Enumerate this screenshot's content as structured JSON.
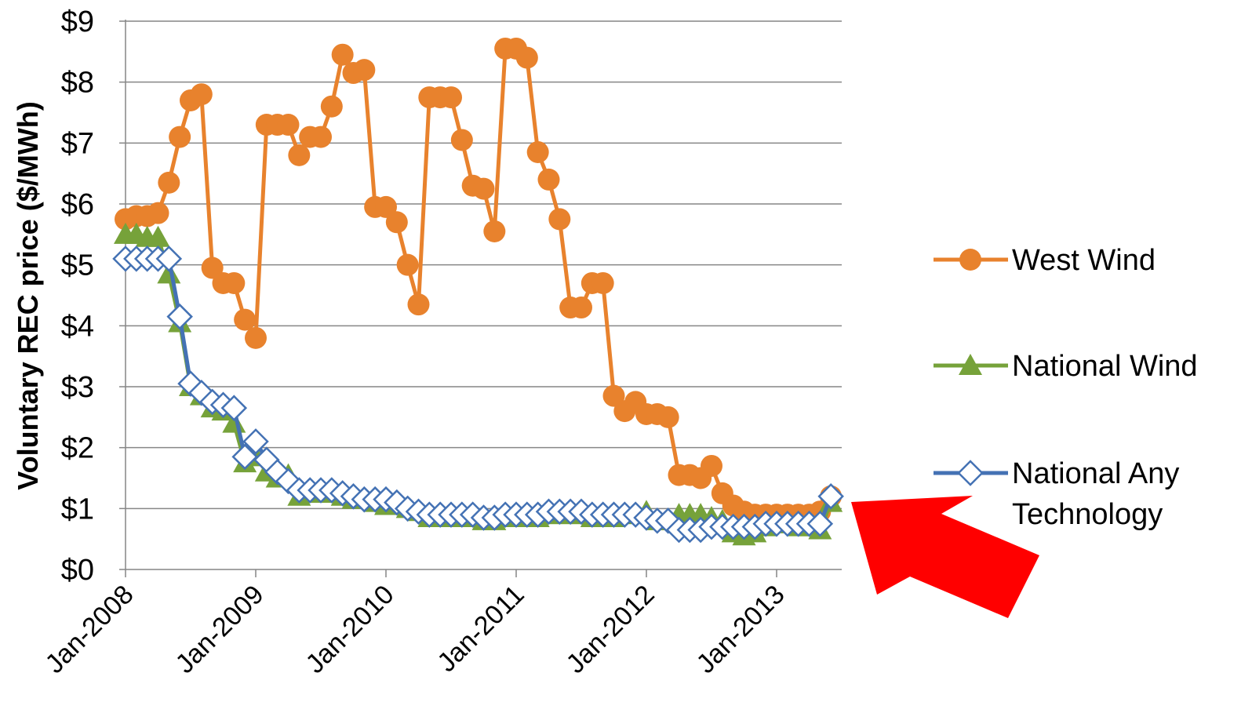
{
  "chart_data": {
    "type": "line",
    "title": "",
    "xlabel": "",
    "ylabel": "Voluntary REC price ($/MWh)",
    "ylim": [
      0,
      9
    ],
    "yticks": [
      0,
      1,
      2,
      3,
      4,
      5,
      6,
      7,
      8,
      9
    ],
    "ytick_labels": [
      "$0",
      "$1",
      "$2",
      "$3",
      "$4",
      "$5",
      "$6",
      "$7",
      "$8",
      "$9"
    ],
    "xlim": [
      "2008-01",
      "2013-07"
    ],
    "xtick_labels": [
      "Jan-2008",
      "Jan-2009",
      "Jan-2010",
      "Jan-2011",
      "Jan-2012",
      "Jan-2013"
    ],
    "xtick_dates": [
      "2008-01",
      "2009-01",
      "2010-01",
      "2011-01",
      "2012-01",
      "2013-01"
    ],
    "grid": "horizontal",
    "legend_position": "right",
    "annotation": {
      "shape": "arrow",
      "color": "#FF0000",
      "points_to": "National Any Technology"
    },
    "x": [
      "2008-01",
      "2008-02",
      "2008-03",
      "2008-04",
      "2008-05",
      "2008-06",
      "2008-07",
      "2008-08",
      "2008-09",
      "2008-10",
      "2008-11",
      "2008-12",
      "2009-01",
      "2009-02",
      "2009-03",
      "2009-04",
      "2009-05",
      "2009-06",
      "2009-07",
      "2009-08",
      "2009-09",
      "2009-10",
      "2009-11",
      "2009-12",
      "2010-01",
      "2010-02",
      "2010-03",
      "2010-04",
      "2010-05",
      "2010-06",
      "2010-07",
      "2010-08",
      "2010-09",
      "2010-10",
      "2010-11",
      "2010-12",
      "2011-01",
      "2011-02",
      "2011-03",
      "2011-04",
      "2011-05",
      "2011-06",
      "2011-07",
      "2011-08",
      "2011-09",
      "2011-10",
      "2011-11",
      "2011-12",
      "2012-01",
      "2012-02",
      "2012-03",
      "2012-04",
      "2012-05",
      "2012-06",
      "2012-07",
      "2012-08",
      "2012-09",
      "2012-10",
      "2012-11",
      "2012-12",
      "2013-01",
      "2013-02",
      "2013-03",
      "2013-04",
      "2013-05",
      "2013-06"
    ],
    "series": [
      {
        "name": "West Wind",
        "color": "#E8822D",
        "marker": "circle",
        "values": [
          5.75,
          5.8,
          5.8,
          5.85,
          6.35,
          7.1,
          7.7,
          7.8,
          4.95,
          4.7,
          4.7,
          4.1,
          3.8,
          7.3,
          7.3,
          7.3,
          6.8,
          7.1,
          7.1,
          7.6,
          8.45,
          8.15,
          8.2,
          5.95,
          5.95,
          5.7,
          5.0,
          4.35,
          7.75,
          7.75,
          7.75,
          7.05,
          6.3,
          6.25,
          5.55,
          8.55,
          8.55,
          8.4,
          6.85,
          6.4,
          5.75,
          4.3,
          4.3,
          4.7,
          4.7,
          2.85,
          2.6,
          2.75,
          2.55,
          2.55,
          2.5,
          1.55,
          1.55,
          1.5,
          1.7,
          1.25,
          1.05,
          0.95,
          0.9,
          0.9,
          0.9,
          0.9,
          0.9,
          0.9,
          0.95,
          1.2
        ]
      },
      {
        "name": "National Wind",
        "color": "#76A23A",
        "marker": "triangle",
        "values": [
          5.5,
          5.5,
          5.45,
          5.45,
          4.85,
          4.05,
          3.0,
          2.85,
          2.65,
          2.6,
          2.4,
          1.75,
          1.85,
          1.6,
          1.5,
          1.55,
          1.2,
          1.25,
          1.25,
          1.25,
          1.2,
          1.15,
          1.15,
          1.1,
          1.05,
          1.05,
          1.0,
          0.95,
          0.85,
          0.85,
          0.85,
          0.85,
          0.85,
          0.8,
          0.8,
          0.85,
          0.85,
          0.85,
          0.85,
          0.9,
          0.9,
          0.9,
          0.9,
          0.85,
          0.85,
          0.85,
          0.9,
          0.9,
          0.95,
          0.8,
          0.8,
          0.9,
          0.9,
          0.9,
          0.85,
          0.8,
          0.6,
          0.55,
          0.6,
          0.7,
          0.75,
          0.75,
          0.7,
          0.7,
          0.65,
          1.1
        ]
      },
      {
        "name": "National Any Technology",
        "color": "#4472B4",
        "marker": "diamond",
        "values": [
          5.1,
          5.1,
          5.1,
          5.1,
          5.1,
          4.15,
          3.05,
          2.9,
          2.75,
          2.7,
          2.65,
          1.85,
          2.1,
          1.8,
          1.6,
          1.45,
          1.3,
          1.3,
          1.3,
          1.3,
          1.25,
          1.2,
          1.15,
          1.15,
          1.15,
          1.1,
          1.0,
          0.95,
          0.9,
          0.9,
          0.9,
          0.9,
          0.9,
          0.85,
          0.85,
          0.9,
          0.9,
          0.9,
          0.9,
          0.95,
          0.95,
          0.95,
          0.95,
          0.9,
          0.9,
          0.9,
          0.9,
          0.9,
          0.85,
          0.8,
          0.8,
          0.65,
          0.65,
          0.65,
          0.7,
          0.7,
          0.7,
          0.7,
          0.7,
          0.75,
          0.75,
          0.75,
          0.75,
          0.75,
          0.75,
          1.2
        ]
      }
    ]
  }
}
